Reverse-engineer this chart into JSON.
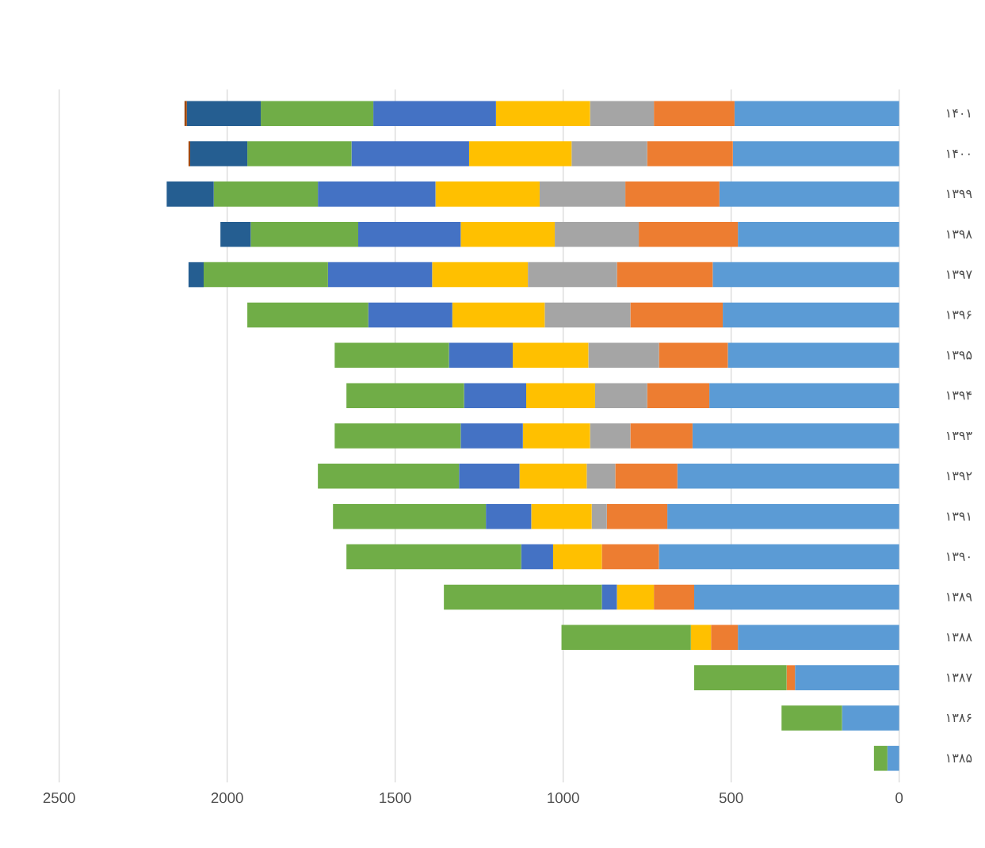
{
  "chart_data": {
    "type": "bar",
    "orientation": "horizontal",
    "stacked": true,
    "grid": "x",
    "categories": [
      "۱۴۰۱",
      "۱۴۰۰",
      "۱۳۹۹",
      "۱۳۹۸",
      "۱۳۹۷",
      "۱۳۹۶",
      "۱۳۹۵",
      "۱۳۹۴",
      "۱۳۹۳",
      "۱۳۹۲",
      "۱۳۹۱",
      "۱۳۹۰",
      "۱۳۸۹",
      "۱۳۸۸",
      "۱۳۸۷",
      "۱۳۸۶",
      "۱۳۸۵"
    ],
    "xlim": [
      2500,
      0
    ],
    "xticks": [
      0,
      500,
      1000,
      1500,
      2000,
      2500
    ],
    "series": [
      {
        "color": "#5b9bd5",
        "values": [
          490,
          495,
          535,
          480,
          555,
          525,
          510,
          565,
          615,
          660,
          690,
          715,
          610,
          480,
          310,
          170,
          35
        ]
      },
      {
        "color": "#ed7d31",
        "values": [
          240,
          255,
          280,
          295,
          285,
          275,
          205,
          185,
          185,
          185,
          180,
          170,
          120,
          80,
          25,
          null,
          null
        ]
      },
      {
        "color": "#a5a5a5",
        "values": [
          190,
          225,
          255,
          250,
          265,
          255,
          210,
          155,
          120,
          85,
          45,
          null,
          null,
          null,
          null,
          null,
          null
        ]
      },
      {
        "color": "#ffc000",
        "values": [
          280,
          305,
          310,
          280,
          285,
          275,
          225,
          205,
          200,
          200,
          180,
          145,
          110,
          60,
          null,
          null,
          null
        ]
      },
      {
        "color": "#4472c4",
        "values": [
          365,
          350,
          350,
          305,
          310,
          250,
          190,
          185,
          185,
          180,
          135,
          95,
          45,
          null,
          null,
          null,
          null
        ]
      },
      {
        "color": "#70ad47",
        "values": [
          335,
          310,
          310,
          320,
          370,
          360,
          340,
          350,
          375,
          420,
          455,
          520,
          470,
          385,
          275,
          180,
          40
        ]
      },
      {
        "color": "#255e91",
        "values": [
          220,
          170,
          140,
          90,
          45,
          null,
          null,
          null,
          null,
          null,
          null,
          null,
          null,
          null,
          null,
          null,
          null
        ]
      },
      {
        "color": "#9e480e",
        "values": [
          7,
          5,
          null,
          null,
          null,
          null,
          null,
          null,
          null,
          null,
          null,
          null,
          null,
          null,
          null,
          null,
          null
        ]
      }
    ]
  }
}
